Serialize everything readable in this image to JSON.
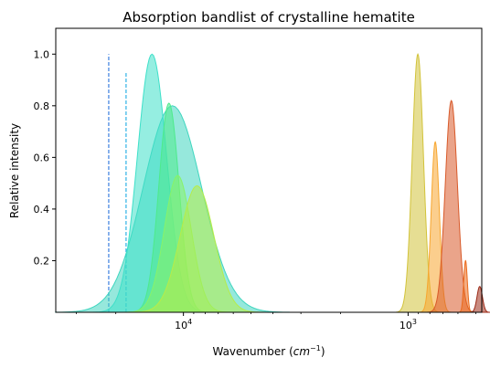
{
  "chart_data": {
    "type": "area",
    "title": "Absorption bandlist of crystalline hematite",
    "xlabel": "Wavenumber",
    "xlabel_unit_base": "cm",
    "xlabel_unit_exp": "−1",
    "ylabel": "Relative intensity",
    "x_scale": "log",
    "x_direction": "reversed",
    "xlim": [
      37000,
      470
    ],
    "ylim": [
      0.0,
      1.1
    ],
    "grid": false,
    "x_major_ticks": [
      {
        "value": 10000,
        "label_base": "10",
        "label_exp": "4"
      },
      {
        "value": 1000,
        "label_base": "10",
        "label_exp": "3"
      }
    ],
    "x_minor_ticks": [
      30000,
      20000,
      9000,
      8000,
      7000,
      6000,
      5000,
      4000,
      3000,
      2000,
      900,
      800,
      700,
      600,
      500
    ],
    "y_ticks": [
      0.2,
      0.4,
      0.6,
      0.8,
      1.0
    ],
    "y_tick_labels": [
      "0.2",
      "0.4",
      "0.6",
      "0.8",
      "1.0"
    ],
    "bands": [
      {
        "center": 21500,
        "width": 0.0085,
        "intensity": 1.0,
        "color": "#3b7fe0",
        "style": "dashed"
      },
      {
        "center": 18000,
        "width": 0.0085,
        "intensity": 0.93,
        "color": "#2fb2e6",
        "style": "dashed"
      },
      {
        "center": 11200,
        "width": 0.13,
        "intensity": 0.8,
        "color": "#3fd6bf",
        "style": "filled"
      },
      {
        "center": 13800,
        "width": 0.065,
        "intensity": 1.0,
        "color": "#3ee0c9",
        "style": "filled"
      },
      {
        "center": 11600,
        "width": 0.045,
        "intensity": 0.81,
        "color": "#4eea8c",
        "style": "filled"
      },
      {
        "center": 10600,
        "width": 0.06,
        "intensity": 0.53,
        "color": "#88f26a",
        "style": "filled"
      },
      {
        "center": 8700,
        "width": 0.075,
        "intensity": 0.49,
        "color": "#b7ec49",
        "style": "filled"
      },
      {
        "center": 905,
        "width": 0.025,
        "intensity": 1.0,
        "color": "#d2c33a",
        "style": "filled"
      },
      {
        "center": 757,
        "width": 0.018,
        "intensity": 0.66,
        "color": "#f7a62f",
        "style": "filled"
      },
      {
        "center": 642,
        "width": 0.027,
        "intensity": 0.82,
        "color": "#d85a2a",
        "style": "filled"
      },
      {
        "center": 555,
        "width": 0.008,
        "intensity": 0.2,
        "color": "#eb6a1c",
        "style": "filled"
      },
      {
        "center": 480,
        "width": 0.012,
        "intensity": 0.1,
        "color": "#9c2b18",
        "style": "filled"
      }
    ]
  }
}
